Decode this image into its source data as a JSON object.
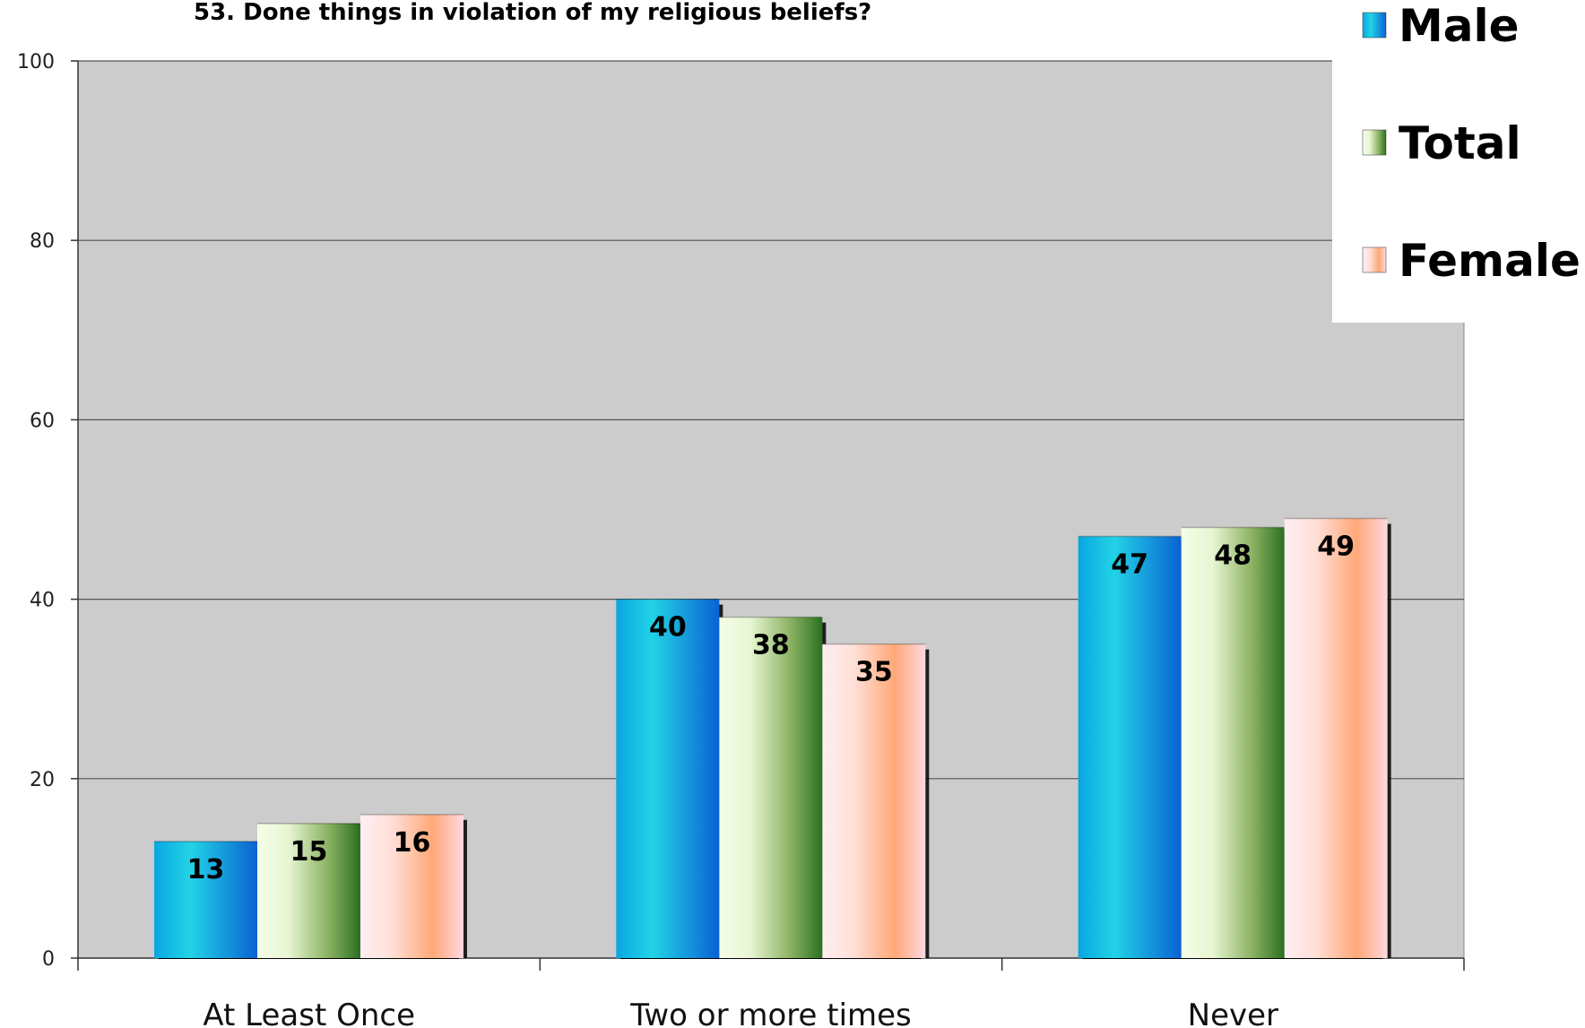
{
  "chart_data": {
    "type": "bar",
    "title": "53. Done things in violation of my religious beliefs?",
    "categories": [
      "At Least Once",
      "Two or more times",
      "Never"
    ],
    "series": [
      {
        "name": "Male",
        "values": [
          13,
          40,
          47
        ],
        "colors": [
          "#0a6fd6",
          "#22d0e6"
        ]
      },
      {
        "name": "Total",
        "values": [
          15,
          38,
          48
        ],
        "colors": [
          "#f0fbe0",
          "#2f7a1f"
        ]
      },
      {
        "name": "Female",
        "values": [
          16,
          35,
          49
        ],
        "colors": [
          "#ffe8ee",
          "#ffa46e"
        ]
      }
    ],
    "ylim": [
      0,
      100
    ],
    "yticks": [
      "0",
      "20",
      "40",
      "60",
      "80",
      "100"
    ],
    "grid": true,
    "legend": "top-right",
    "plot_background": "#cccccc"
  }
}
